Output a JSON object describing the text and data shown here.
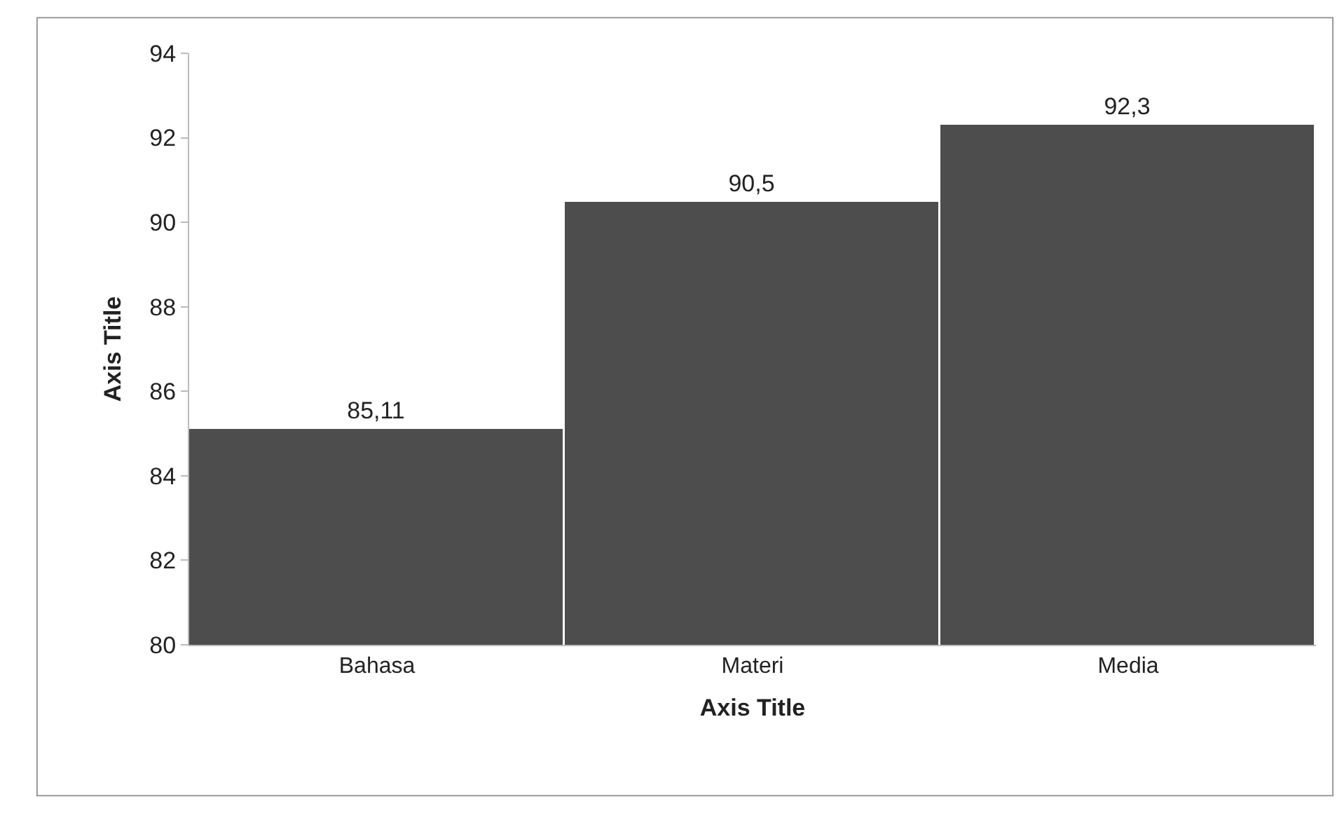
{
  "chart_data": {
    "type": "bar",
    "xlabel": "Axis Title",
    "ylabel": "Axis Title",
    "categories": [
      "Bahasa",
      "Materi",
      "Media"
    ],
    "values": [
      85.11,
      90.5,
      92.3
    ],
    "value_labels": [
      "85,11",
      "90,5",
      "92,3"
    ],
    "color": "#4d4d4d",
    "ylim": [
      80,
      94
    ],
    "yticks": [
      80,
      82,
      84,
      86,
      88,
      90,
      92,
      94
    ]
  }
}
